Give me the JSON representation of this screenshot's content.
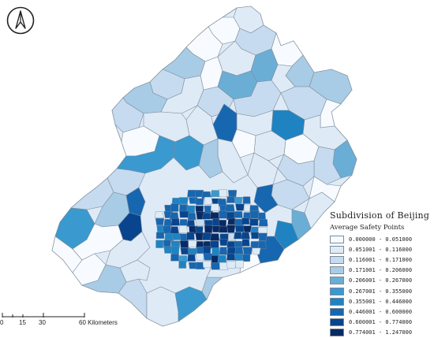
{
  "map": {
    "title": "Subdivision of Beijing",
    "subtitle": "Average Safety Points",
    "north_icon": "north-arrow-icon",
    "stroke_color": "#7f8c9a"
  },
  "legend": [
    {
      "label": "0.000000 - 0.051000",
      "color": "#f7fbff"
    },
    {
      "label": "0.051001 - 0.116000",
      "color": "#deebf7"
    },
    {
      "label": "0.116001 - 0.171000",
      "color": "#c6dbef"
    },
    {
      "label": "0.171001 - 0.206000",
      "color": "#a8cce6"
    },
    {
      "label": "0.206001 - 0.267000",
      "color": "#6aaed6"
    },
    {
      "label": "0.267001 - 0.355000",
      "color": "#3a99cf"
    },
    {
      "label": "0.355001 - 0.446000",
      "color": "#1f83c2"
    },
    {
      "label": "0.446001 - 0.600000",
      "color": "#1766b0"
    },
    {
      "label": "0.600001 - 0.774000",
      "color": "#08458e"
    },
    {
      "label": "0.774001 - 1.247000",
      "color": "#082a64"
    }
  ],
  "scale": {
    "labels": [
      "0",
      "15",
      "30",
      "60 Kilometers"
    ]
  }
}
